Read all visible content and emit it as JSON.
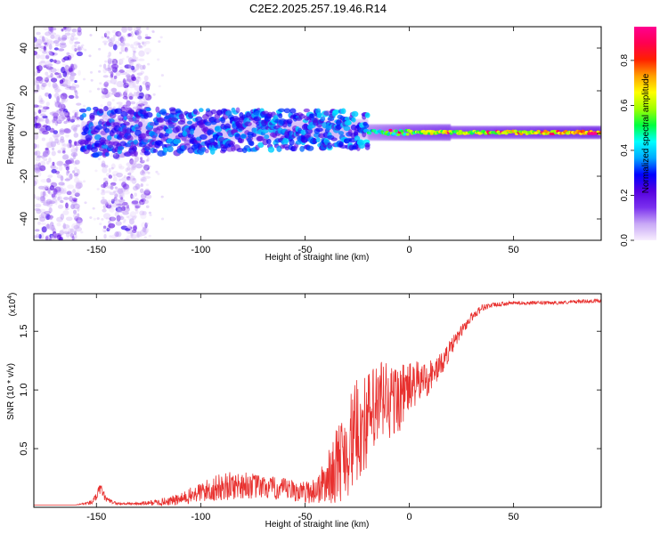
{
  "chart_data": [
    {
      "type": "heatmap",
      "title": "C2E2.2025.257.19.46.R14",
      "xlabel": "Height of straight line (km)",
      "ylabel": "Frequency (Hz)",
      "xlim": [
        -180,
        92
      ],
      "ylim": [
        -50,
        50
      ],
      "xticks": [
        -150,
        -100,
        -50,
        0,
        50
      ],
      "xtick_labels": [
        "-150",
        "-100",
        "-50",
        "0",
        "50"
      ],
      "yticks": [
        -40,
        -20,
        0,
        20,
        40
      ],
      "ytick_labels": [
        "-40",
        "-20",
        "0",
        "20",
        "40"
      ],
      "colorbar": {
        "label": "Normalized spectral amplitude",
        "range": [
          0,
          0.95
        ],
        "ticks": [
          0.0,
          0.2,
          0.4,
          0.6,
          0.8
        ],
        "tick_labels": [
          "0.0",
          "0.2",
          "0.4",
          "0.6",
          "0.8"
        ],
        "colors": [
          "#f8eefe",
          "#c8a8f6",
          "#7a30ee",
          "#5500e0",
          "#0000ff",
          "#00a8ff",
          "#00ffff",
          "#00ff40",
          "#a0ff00",
          "#ffff00",
          "#ffa000",
          "#ff2000",
          "#ff0050",
          "#ff0090"
        ]
      },
      "features": [
        {
          "name": "scattered-echo-band-1",
          "x_range": [
            -180,
            -158
          ],
          "y_range": [
            -50,
            50
          ],
          "amplitude": 0.1
        },
        {
          "name": "scattered-echo-band-2",
          "x_range": [
            -147,
            -125
          ],
          "y_range": [
            -50,
            50
          ],
          "amplitude": 0.08
        },
        {
          "name": "signal-trace",
          "x_range": [
            -157,
            92
          ],
          "center_hz": 0,
          "amplitude_max": 0.95
        }
      ]
    },
    {
      "type": "line",
      "xlabel": "Height of straight line (km)",
      "ylabel": "SNR (10 * v/v)",
      "y_multiplier": "(x10^4)",
      "y_multiplier_base": "(x10",
      "y_multiplier_exp": "4",
      "y_multiplier_close": ")",
      "xlim": [
        -180,
        92
      ],
      "ylim": [
        0,
        1.82
      ],
      "xticks": [
        -150,
        -100,
        -50,
        0,
        50
      ],
      "xtick_labels": [
        "-150",
        "-100",
        "-50",
        "0",
        "50"
      ],
      "yticks": [
        0.5,
        1.0,
        1.5
      ],
      "ytick_labels": [
        "0.5",
        "1.0",
        "1.5"
      ],
      "series": [
        {
          "name": "SNR",
          "color": "#e8312f",
          "x": [
            -180,
            -160,
            -152,
            -148,
            -145,
            -140,
            -130,
            -120,
            -110,
            -100,
            -90,
            -80,
            -70,
            -60,
            -50,
            -45,
            -40,
            -35,
            -30,
            -25,
            -20,
            -15,
            -12,
            -10,
            -5,
            0,
            5,
            10,
            15,
            20,
            25,
            30,
            35,
            40,
            50,
            60,
            70,
            80,
            92
          ],
          "y": [
            0.02,
            0.02,
            0.04,
            0.14,
            0.06,
            0.03,
            0.03,
            0.04,
            0.06,
            0.12,
            0.16,
            0.18,
            0.16,
            0.14,
            0.12,
            0.13,
            0.2,
            0.32,
            0.45,
            0.6,
            0.7,
            0.8,
            0.9,
            0.85,
            0.9,
            1.0,
            1.05,
            1.1,
            1.2,
            1.35,
            1.5,
            1.62,
            1.7,
            1.72,
            1.74,
            1.74,
            1.74,
            1.75,
            1.76
          ],
          "noise": [
            0.0,
            0.0,
            0.02,
            0.06,
            0.02,
            0.01,
            0.01,
            0.03,
            0.05,
            0.09,
            0.12,
            0.12,
            0.1,
            0.1,
            0.09,
            0.12,
            0.2,
            0.32,
            0.42,
            0.45,
            0.42,
            0.4,
            0.4,
            0.35,
            0.3,
            0.22,
            0.18,
            0.15,
            0.1,
            0.08,
            0.05,
            0.04,
            0.03,
            0.02,
            0.015,
            0.015,
            0.015,
            0.015,
            0.015
          ]
        }
      ]
    }
  ]
}
